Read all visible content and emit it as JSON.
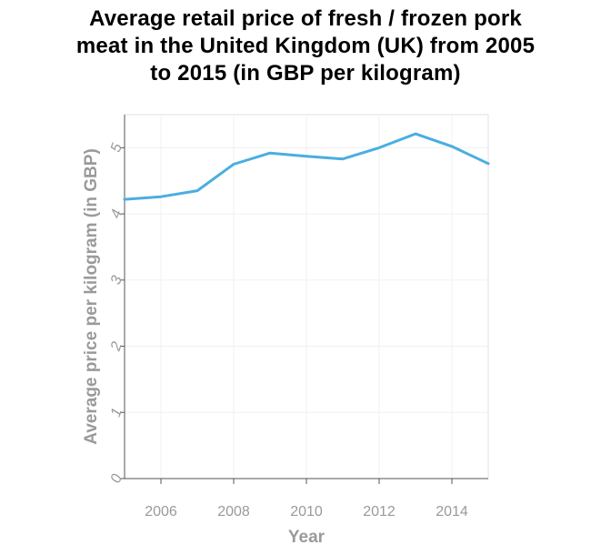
{
  "chart_data": {
    "type": "line",
    "title": "Average retail price of fresh / frozen pork\nmeat in the United Kingdom (UK) from 2005\nto 2015 (in GBP per kilogram)",
    "xlabel": "Year",
    "ylabel": "Average price per kilogram (in GBP)",
    "xlim": [
      2005,
      2015
    ],
    "ylim": [
      0,
      5.5
    ],
    "x_ticks": [
      "2006",
      "2008",
      "2010",
      "2012",
      "2014"
    ],
    "y_ticks": [
      "0",
      "1",
      "2",
      "3",
      "4",
      "5"
    ],
    "grid": true,
    "series": [
      {
        "x": [
          2005,
          2006,
          2007,
          2008,
          2009,
          2010,
          2011,
          2012,
          2013,
          2014,
          2015
        ],
        "values": [
          4.22,
          4.26,
          4.35,
          4.75,
          4.92,
          4.87,
          4.83,
          5.0,
          5.21,
          5.02,
          4.76
        ]
      }
    ],
    "colors": {
      "line": "#4aaee0",
      "grid": "#f0f0f0",
      "axis": "#555555"
    }
  }
}
